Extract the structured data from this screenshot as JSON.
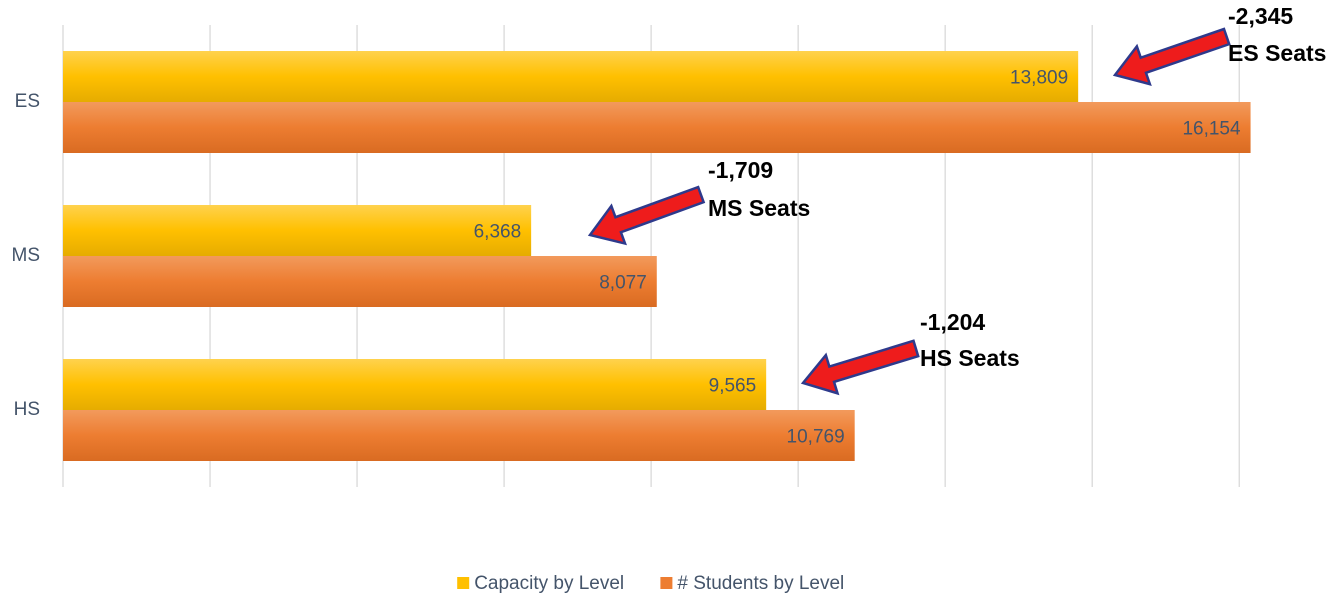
{
  "chart_data": {
    "type": "hbar",
    "categories": [
      "ES",
      "MS",
      "HS"
    ],
    "series": [
      {
        "name": "Capacity by Level",
        "color": "#ffc000",
        "values": [
          13809,
          6368,
          9565
        ],
        "value_labels": [
          "13,809",
          "6,368",
          "9,565"
        ]
      },
      {
        "name": "# Students by Level",
        "color": "#ed7d31",
        "values": [
          16154,
          8077,
          10769
        ],
        "value_labels": [
          "16,154",
          "8,077",
          "10,769"
        ]
      }
    ],
    "xlim": [
      0,
      16500
    ],
    "xticks": [
      0,
      2000,
      4000,
      6000,
      8000,
      10000,
      12000,
      14000,
      16000
    ],
    "grid": true,
    "legend": "bottom",
    "annotations": [
      {
        "label": "-2,345",
        "text": "ES Seats"
      },
      {
        "label": "-1,709",
        "text": "MS Seats"
      },
      {
        "label": "-1,204",
        "text": "HS Seats"
      }
    ]
  }
}
